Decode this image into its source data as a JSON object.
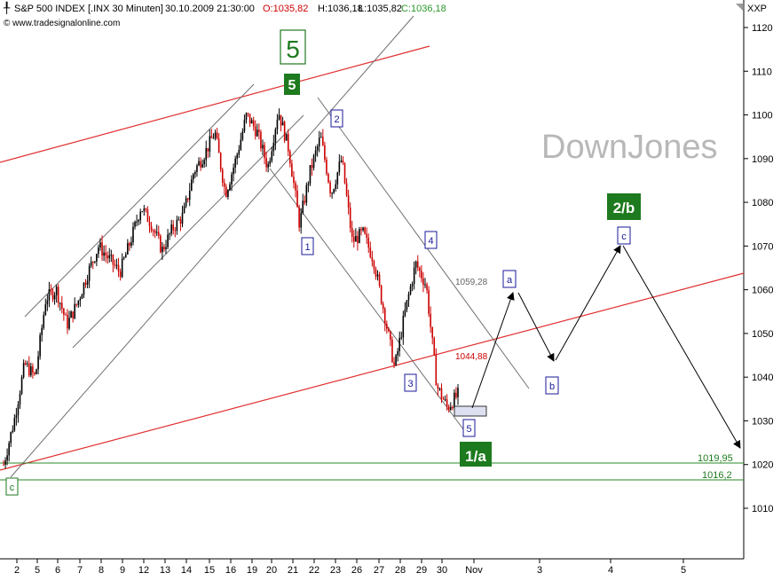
{
  "header": {
    "symbol_icon": "candlestick-icon",
    "title": "S&P 500 INDEX [.INX  30 Minuten]",
    "datetime": "30.10.2009 21:30:00",
    "open": "O:1035,82",
    "high": "H:1036,18",
    "low": "L:1035,82",
    "close": "C:1036,18",
    "source": "© www.tradesignalonline.com",
    "corner_label": "XXP",
    "watermark": "DownJones"
  },
  "colors": {
    "up": "#000000",
    "down": "#cc0000",
    "trend_red": "#e03030",
    "support_green": "#2a8a2a",
    "channel_gray": "#707070",
    "wave_box": "#1a1a99",
    "wave_green_bg": "#1e7a1e"
  },
  "chart_data": {
    "type": "candlestick",
    "y_axis": {
      "min": 1000,
      "max": 1122,
      "ticks": [
        1010,
        1020,
        1030,
        1040,
        1050,
        1060,
        1070,
        1080,
        1090,
        1100,
        1110,
        1120
      ],
      "position": "right"
    },
    "x_axis": {
      "ticks": [
        "2",
        "5",
        "6",
        "7",
        "8",
        "9",
        "12",
        "13",
        "14",
        "15",
        "16",
        "19",
        "20",
        "21",
        "22",
        "23",
        "26",
        "27",
        "28",
        "29",
        "30",
        "Nov",
        "3",
        "4",
        "5"
      ]
    },
    "price_path": [
      1020,
      1030,
      1043,
      1040,
      1058,
      1060,
      1052,
      1057,
      1064,
      1070,
      1067,
      1064,
      1071,
      1079,
      1075,
      1069,
      1074,
      1077,
      1087,
      1091,
      1096,
      1082,
      1090,
      1100,
      1096,
      1088,
      1101,
      1092,
      1075,
      1087,
      1095,
      1082,
      1090,
      1071,
      1073,
      1067,
      1055,
      1042,
      1055,
      1066,
      1061,
      1038,
      1033,
      1036
    ],
    "horizontal_levels": [
      {
        "value": 1019.95,
        "label": "1019,95"
      },
      {
        "value": 1016.2,
        "label": "1016,2"
      }
    ],
    "price_labels": [
      {
        "value": 1059.28,
        "label": "1059,28"
      },
      {
        "value": 1044.88,
        "label": "1044,88"
      }
    ],
    "wave_labels": [
      {
        "text": "5",
        "style": "green-outline-large"
      },
      {
        "text": "5",
        "style": "green-filled"
      },
      {
        "text": "1",
        "style": "blue-box"
      },
      {
        "text": "2",
        "style": "blue-box"
      },
      {
        "text": "3",
        "style": "blue-box"
      },
      {
        "text": "4",
        "style": "blue-box"
      },
      {
        "text": "5",
        "style": "blue-box"
      },
      {
        "text": "1/a",
        "style": "green-filled"
      },
      {
        "text": "a",
        "style": "blue-box"
      },
      {
        "text": "b",
        "style": "blue-box"
      },
      {
        "text": "c",
        "style": "blue-box"
      },
      {
        "text": "2/b",
        "style": "green-filled"
      },
      {
        "text": "c",
        "style": "green-small"
      }
    ]
  }
}
